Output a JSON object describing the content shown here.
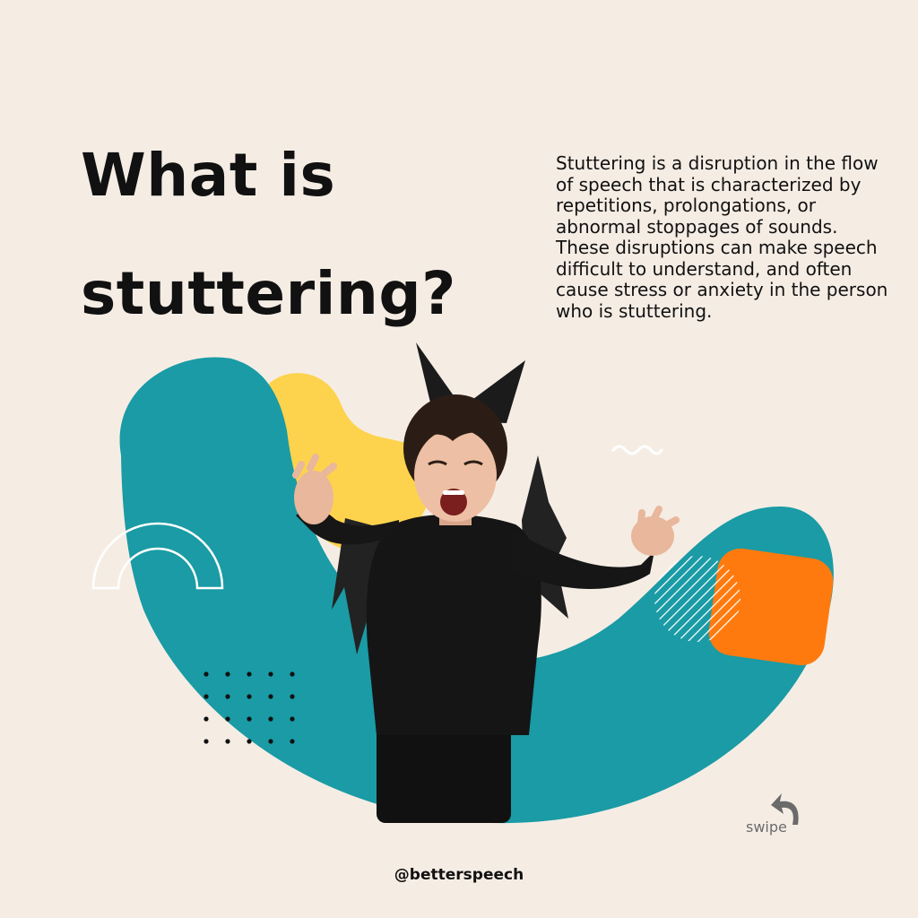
{
  "headline": {
    "line1": "What is",
    "line2": "stuttering?"
  },
  "description": "Stuttering is a disruption in the flow of speech that is characterized by repetitions, prolongations, or abnormal stoppages of sounds. These disruptions can make speech difficult to understand, and often cause stress or anxiety in the person who is stuttering.",
  "swipe_label": "swipe",
  "handle": "@betterspeech",
  "icons": {
    "swipe": "curved-arrow-icon"
  },
  "colors": {
    "background": "#F5EDE4",
    "teal": "#1A9BA5",
    "yellow": "#FDD34D",
    "orange": "#FF7A0E",
    "text": "#111111"
  }
}
